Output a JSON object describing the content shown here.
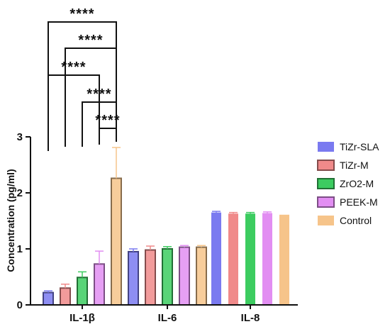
{
  "chart_data": {
    "type": "bar",
    "categories": [
      "IL-1β",
      "IL-6",
      "IL-8"
    ],
    "ylabel": "Concentration (pg/ml)",
    "ylim": [
      0,
      3
    ],
    "yticks": [
      "0",
      "1",
      "2",
      "3"
    ],
    "legend_position": "right",
    "series": [
      {
        "name": "TiZr-SLA",
        "color": "#7a7af0",
        "values": [
          0.22,
          0.95,
          1.65
        ],
        "errors": [
          0.03,
          0.05,
          0.02
        ],
        "style": "outlined"
      },
      {
        "name": "TiZr-M",
        "color": "#f08a8a",
        "values": [
          0.3,
          0.98,
          1.63
        ],
        "errors": [
          0.07,
          0.07,
          0.02
        ],
        "style": "outlined"
      },
      {
        "name": "ZrO2-M",
        "color": "#3ccc60",
        "values": [
          0.49,
          1.0,
          1.63
        ],
        "errors": [
          0.1,
          0.04,
          0.02
        ],
        "style": "outlined"
      },
      {
        "name": "PEEK-M",
        "color": "#e28ef2",
        "values": [
          0.73,
          1.03,
          1.64
        ],
        "errors": [
          0.23,
          0.03,
          0.02
        ],
        "style": "outlined"
      },
      {
        "name": "Control",
        "color": "#f6c48a",
        "values": [
          2.26,
          1.03,
          1.61
        ],
        "errors": [
          0.55,
          0.03,
          0.0
        ],
        "style": "outlined"
      }
    ],
    "significance": [
      {
        "category": "IL-1β",
        "from_series": "TiZr-SLA",
        "to_series": "Control",
        "label": "****"
      },
      {
        "category": "IL-1β",
        "from_series": "TiZr-M",
        "to_series": "Control",
        "label": "****"
      },
      {
        "category": "IL-1β",
        "from_series": "TiZr-SLA",
        "to_series": "PEEK-M",
        "label": "****"
      },
      {
        "category": "IL-1β",
        "from_series": "ZrO2-M",
        "to_series": "Control",
        "label": "****"
      },
      {
        "category": "IL-1β",
        "from_series": "PEEK-M",
        "to_series": "Control",
        "label": "****"
      }
    ]
  }
}
